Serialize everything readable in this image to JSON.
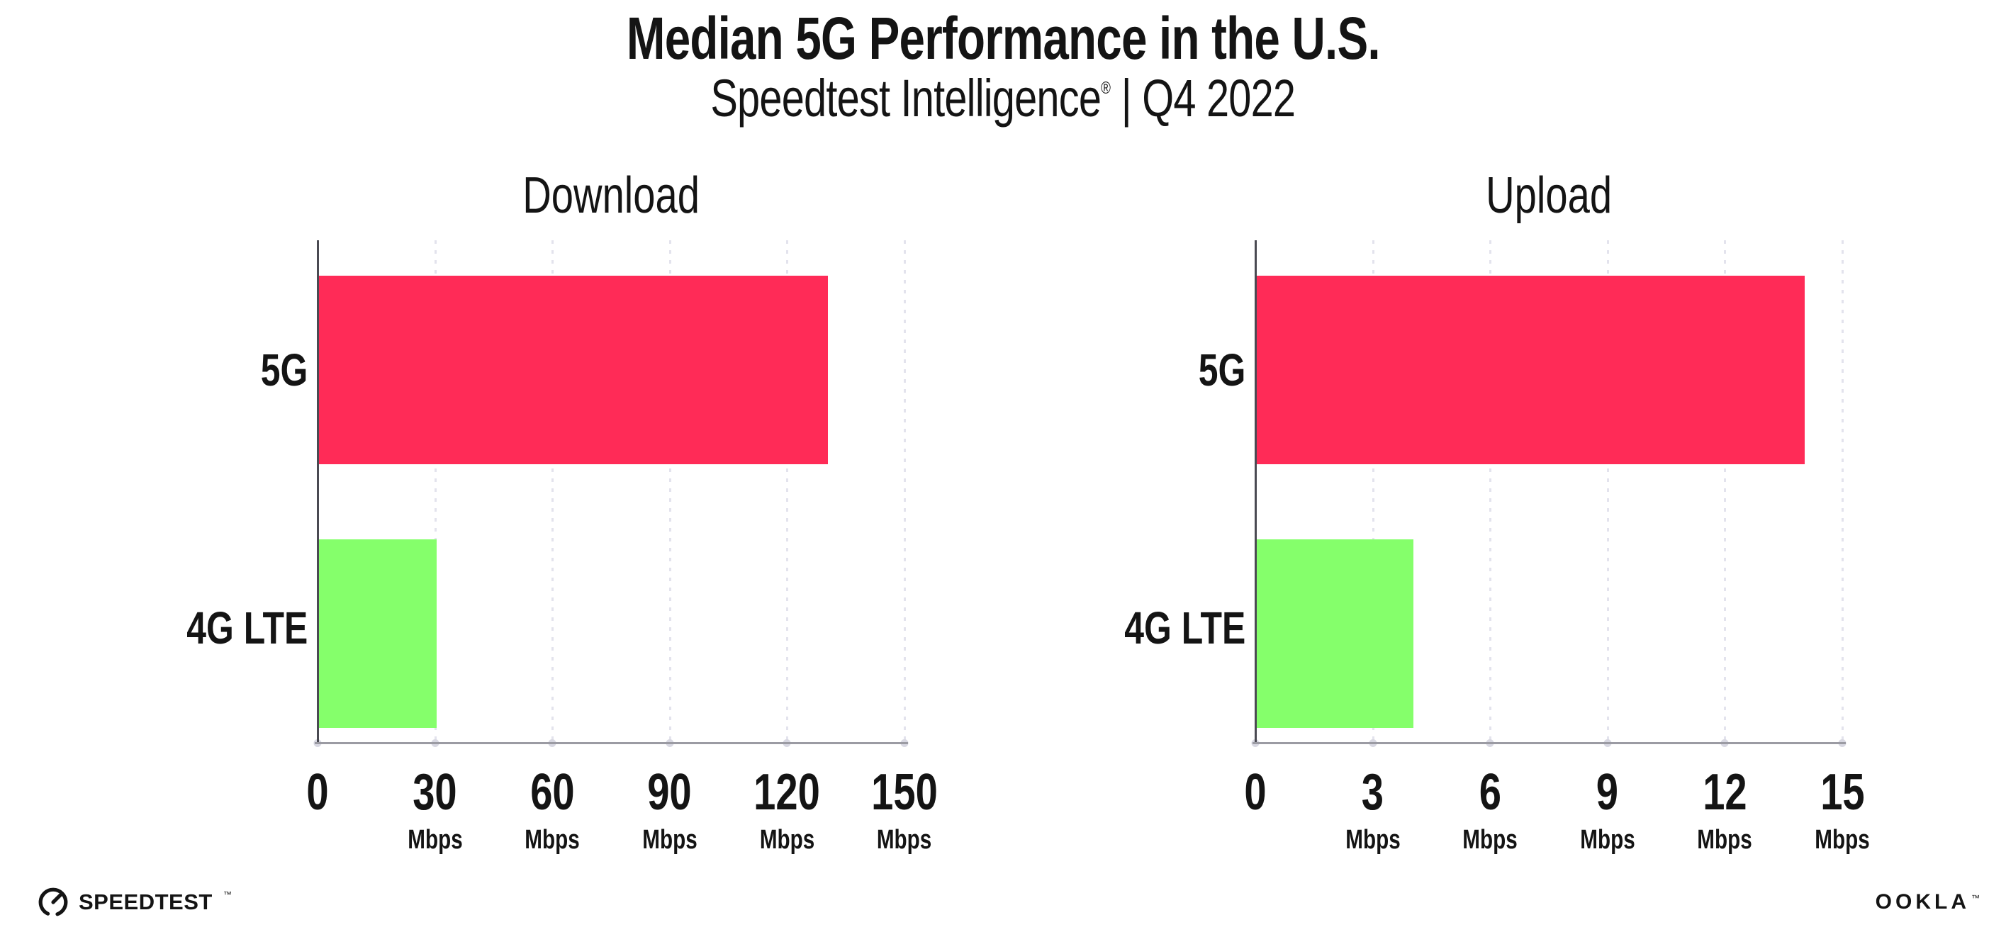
{
  "header": {
    "title": "Median 5G Performance in the U.S.",
    "subtitle_brand": "Speedtest Intelligence",
    "registered_mark": "®",
    "subtitle_rest": "| Q4 2022"
  },
  "chart_data": {
    "figure_title": "Median 5G Performance in the U.S.",
    "figure_subtitle": "Speedtest Intelligence® | Q4 2022",
    "charts": [
      {
        "type": "bar",
        "orientation": "horizontal",
        "title": "Download",
        "categories": [
          "5G",
          "4G LTE"
        ],
        "values": [
          130,
          30
        ],
        "unit": "Mbps",
        "xlim": [
          0,
          150
        ],
        "xticks": [
          0,
          30,
          60,
          90,
          120,
          150
        ],
        "colors": [
          "#ff2b57",
          "#85ff6b"
        ],
        "grid": "dotted-vertical",
        "legend": "none"
      },
      {
        "type": "bar",
        "orientation": "horizontal",
        "title": "Upload",
        "categories": [
          "5G",
          "4G LTE"
        ],
        "values": [
          14,
          4
        ],
        "unit": "Mbps",
        "xlim": [
          0,
          15
        ],
        "xticks": [
          0,
          3,
          6,
          9,
          12,
          15
        ],
        "colors": [
          "#ff2b57",
          "#85ff6b"
        ],
        "grid": "dotted-vertical",
        "legend": "none"
      }
    ]
  },
  "axis_ticks": [
    [
      {
        "label": "0",
        "unit": ""
      },
      {
        "label": "30",
        "unit": "Mbps"
      },
      {
        "label": "60",
        "unit": "Mbps"
      },
      {
        "label": "90",
        "unit": "Mbps"
      },
      {
        "label": "120",
        "unit": "Mbps"
      },
      {
        "label": "150",
        "unit": "Mbps"
      }
    ],
    [
      {
        "label": "0",
        "unit": ""
      },
      {
        "label": "3",
        "unit": "Mbps"
      },
      {
        "label": "6",
        "unit": "Mbps"
      },
      {
        "label": "9",
        "unit": "Mbps"
      },
      {
        "label": "12",
        "unit": "Mbps"
      },
      {
        "label": "15",
        "unit": "Mbps"
      }
    ]
  ],
  "footer": {
    "speedtest_label": "SPEEDTEST",
    "speedtest_tm": "™",
    "ookla_label": "OOKLA",
    "ookla_tm": "™"
  }
}
